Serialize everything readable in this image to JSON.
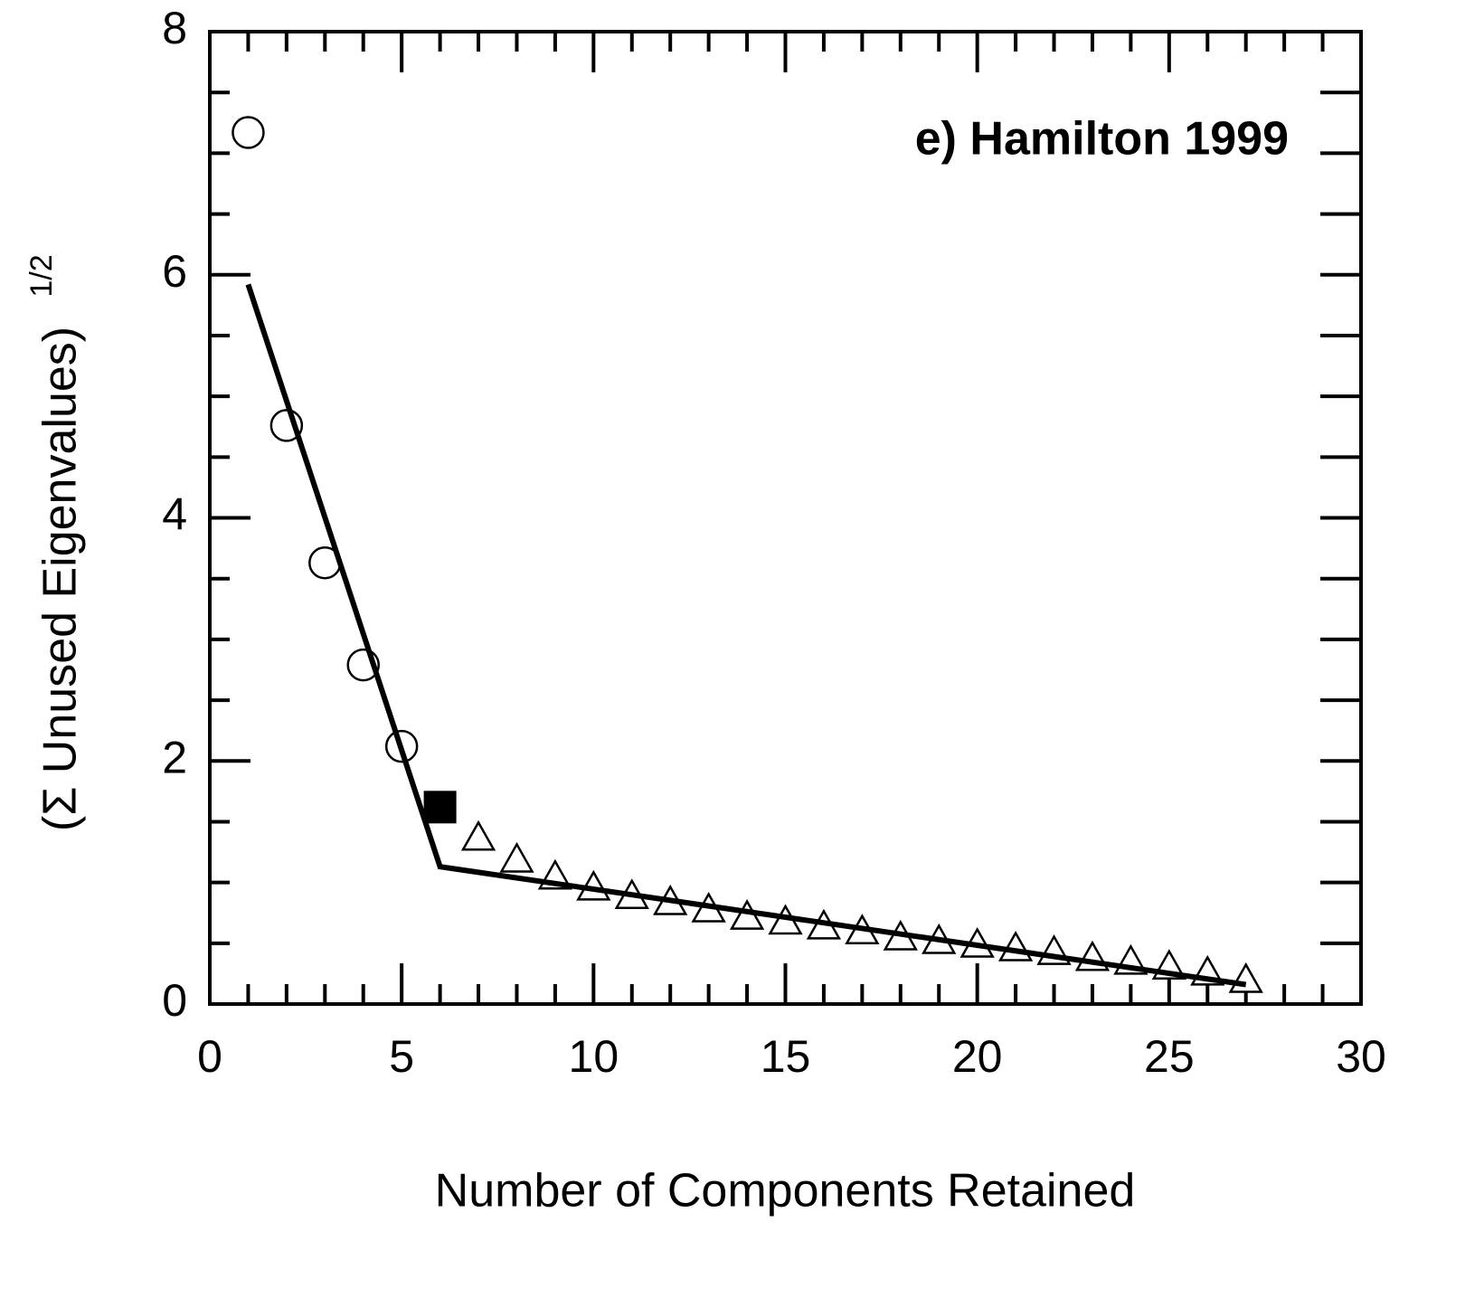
{
  "chart_data": {
    "type": "scatter",
    "annotation": "e) Hamilton 1999",
    "xlabel": "Number of Components Retained",
    "ylabel": "(Σ Unused Eigenvalues)",
    "ylabel_superscript": "1/2",
    "xlim": [
      0,
      30
    ],
    "ylim": [
      0,
      8
    ],
    "xticks": [
      0,
      5,
      10,
      15,
      20,
      25,
      30
    ],
    "yticks": [
      0,
      2,
      4,
      6,
      8
    ],
    "series": [
      {
        "marker": "circle",
        "color": "#000000",
        "x": [
          1,
          2,
          3,
          4,
          5
        ],
        "values": [
          7.17,
          4.76,
          3.63,
          2.79,
          2.12
        ]
      },
      {
        "marker": "square",
        "color": "#000000",
        "x": [
          6
        ],
        "values": [
          1.62
        ]
      },
      {
        "marker": "triangle",
        "color": "#000000",
        "x": [
          7,
          8,
          9,
          10,
          11,
          12,
          13,
          14,
          15,
          16,
          17,
          18,
          19,
          20,
          21,
          22,
          23,
          24,
          25,
          26,
          27
        ],
        "values": [
          1.36,
          1.18,
          1.04,
          0.95,
          0.88,
          0.83,
          0.77,
          0.71,
          0.67,
          0.63,
          0.59,
          0.54,
          0.51,
          0.48,
          0.45,
          0.42,
          0.37,
          0.34,
          0.3,
          0.25,
          0.19
        ]
      },
      {
        "marker": "line",
        "color": "#000000",
        "x": [
          1,
          6,
          27
        ],
        "values": [
          5.92,
          1.13,
          0.16
        ]
      }
    ]
  }
}
